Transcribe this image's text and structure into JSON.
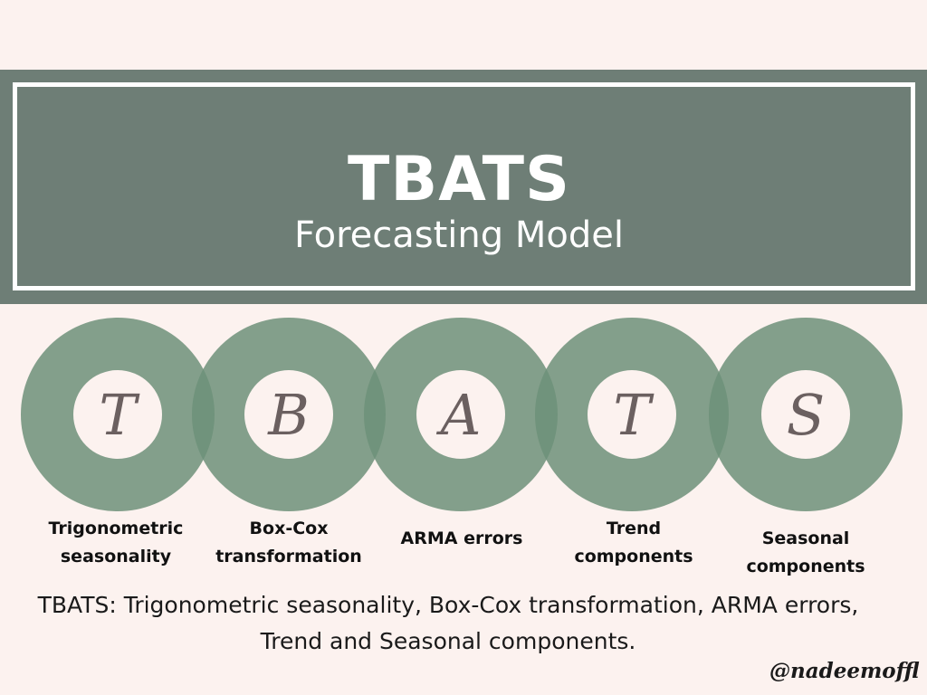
{
  "header": {
    "title": "TBATS",
    "subtitle": "Forecasting Model"
  },
  "components": [
    {
      "letter": "T",
      "label": "Trigonometric\nseasonality"
    },
    {
      "letter": "B",
      "label": "Box-Cox\ntransformation"
    },
    {
      "letter": "A",
      "label": "ARMA errors"
    },
    {
      "letter": "T",
      "label": "Trend\ncomponents"
    },
    {
      "letter": "S",
      "label": "Seasonal\ncomponents"
    }
  ],
  "caption": "TBATS: Trigonometric seasonality, Box-Cox transformation, ARMA errors, Trend and Seasonal components.",
  "signature": "@nadeemoffl",
  "colors": {
    "background": "#fcf2ef",
    "header_band": "#6e7e76",
    "ring": "#6d9079",
    "letter": "#6b6060"
  }
}
